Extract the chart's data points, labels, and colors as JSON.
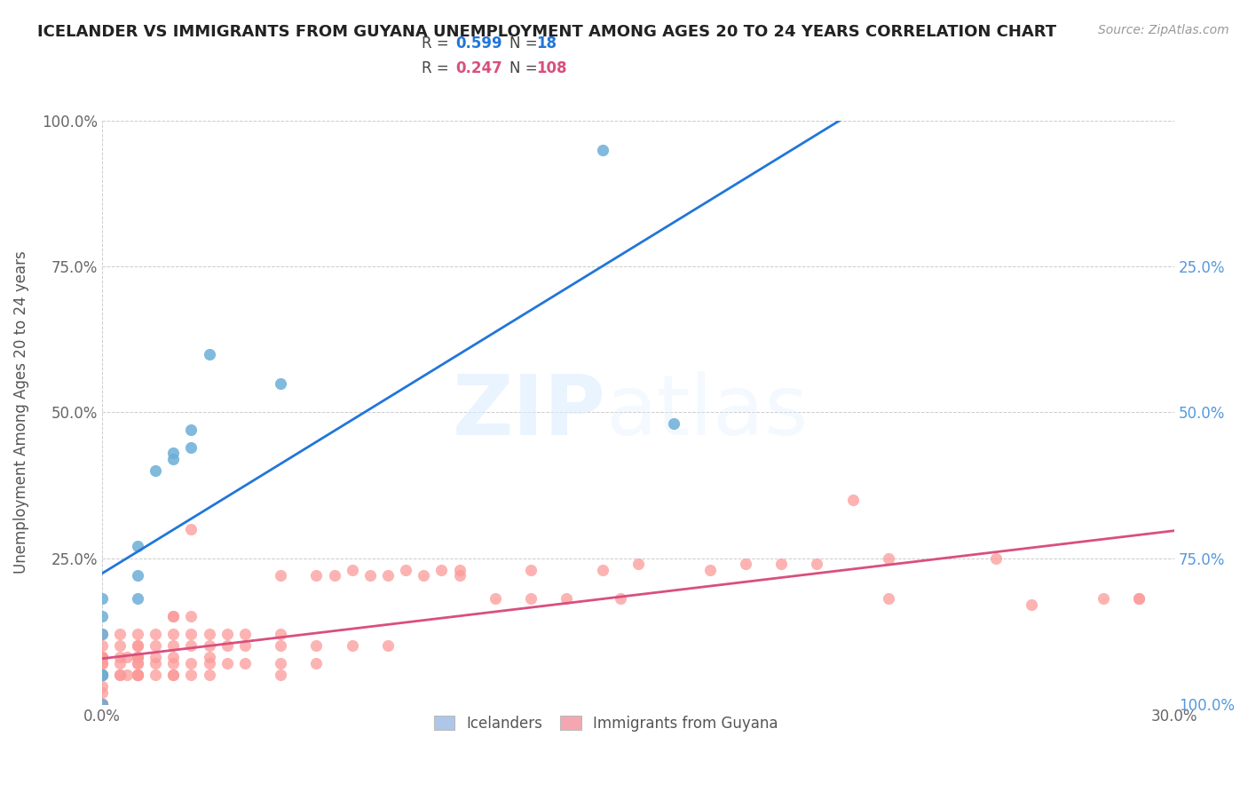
{
  "title": "ICELANDER VS IMMIGRANTS FROM GUYANA UNEMPLOYMENT AMONG AGES 20 TO 24 YEARS CORRELATION CHART",
  "source": "Source: ZipAtlas.com",
  "ylabel": "Unemployment Among Ages 20 to 24 years",
  "xlim": [
    0.0,
    0.3
  ],
  "ylim": [
    0.0,
    1.0
  ],
  "icelanders_color": "#6baed6",
  "guyana_color": "#fb9a99",
  "icelanders_R": 0.599,
  "icelanders_N": 18,
  "guyana_R": 0.247,
  "guyana_N": 108,
  "icelanders_x": [
    0.0,
    0.0,
    0.0,
    0.0,
    0.0,
    0.0,
    0.01,
    0.01,
    0.01,
    0.015,
    0.02,
    0.02,
    0.025,
    0.025,
    0.03,
    0.05,
    0.14,
    0.16
  ],
  "icelanders_y": [
    0.0,
    0.05,
    0.05,
    0.12,
    0.15,
    0.18,
    0.18,
    0.22,
    0.27,
    0.4,
    0.42,
    0.43,
    0.44,
    0.47,
    0.6,
    0.55,
    0.95,
    0.48
  ],
  "guyana_x": [
    0.0,
    0.0,
    0.0,
    0.0,
    0.0,
    0.0,
    0.0,
    0.0,
    0.0,
    0.0,
    0.0,
    0.0,
    0.0,
    0.0,
    0.0,
    0.0,
    0.0,
    0.0,
    0.0,
    0.0,
    0.005,
    0.005,
    0.005,
    0.005,
    0.005,
    0.005,
    0.007,
    0.007,
    0.01,
    0.01,
    0.01,
    0.01,
    0.01,
    0.01,
    0.01,
    0.01,
    0.01,
    0.01,
    0.01,
    0.01,
    0.015,
    0.015,
    0.015,
    0.015,
    0.015,
    0.02,
    0.02,
    0.02,
    0.02,
    0.02,
    0.02,
    0.02,
    0.02,
    0.025,
    0.025,
    0.025,
    0.025,
    0.025,
    0.025,
    0.03,
    0.03,
    0.03,
    0.03,
    0.03,
    0.035,
    0.035,
    0.035,
    0.04,
    0.04,
    0.04,
    0.05,
    0.05,
    0.05,
    0.05,
    0.05,
    0.06,
    0.06,
    0.06,
    0.07,
    0.07,
    0.08,
    0.08,
    0.09,
    0.1,
    0.1,
    0.12,
    0.14,
    0.15,
    0.17,
    0.18,
    0.19,
    0.2,
    0.22,
    0.25,
    0.26,
    0.28,
    0.29,
    0.29,
    0.21,
    0.22,
    0.145,
    0.13,
    0.12,
    0.11,
    0.095,
    0.085,
    0.075,
    0.065
  ],
  "guyana_y": [
    0.0,
    0.0,
    0.0,
    0.0,
    0.0,
    0.02,
    0.03,
    0.05,
    0.05,
    0.05,
    0.07,
    0.08,
    0.05,
    0.05,
    0.07,
    0.08,
    0.1,
    0.12,
    0.05,
    0.08,
    0.05,
    0.07,
    0.08,
    0.1,
    0.12,
    0.05,
    0.05,
    0.08,
    0.05,
    0.07,
    0.08,
    0.08,
    0.1,
    0.1,
    0.12,
    0.05,
    0.05,
    0.05,
    0.07,
    0.08,
    0.05,
    0.07,
    0.1,
    0.12,
    0.08,
    0.05,
    0.05,
    0.07,
    0.08,
    0.1,
    0.12,
    0.15,
    0.15,
    0.05,
    0.1,
    0.12,
    0.15,
    0.3,
    0.07,
    0.05,
    0.08,
    0.1,
    0.12,
    0.07,
    0.07,
    0.1,
    0.12,
    0.07,
    0.1,
    0.12,
    0.05,
    0.07,
    0.1,
    0.12,
    0.22,
    0.07,
    0.1,
    0.22,
    0.1,
    0.23,
    0.1,
    0.22,
    0.22,
    0.22,
    0.23,
    0.23,
    0.23,
    0.24,
    0.23,
    0.24,
    0.24,
    0.24,
    0.25,
    0.25,
    0.17,
    0.18,
    0.18,
    0.18,
    0.35,
    0.18,
    0.18,
    0.18,
    0.18,
    0.18,
    0.23,
    0.23,
    0.22,
    0.22
  ],
  "watermark_zip": "ZIP",
  "watermark_atlas": "atlas",
  "legend_box_color_icelanders": "#aec6e8",
  "legend_box_color_guyana": "#f4a7b0",
  "trend_blue_color": "#2176d9",
  "trend_pink_color": "#d94f7e",
  "legend_R_color_ice": "#2176d9",
  "legend_R_color_guy": "#d94f7e",
  "legend_N_color_ice": "#2176d9",
  "legend_N_color_guy": "#d94f7e"
}
